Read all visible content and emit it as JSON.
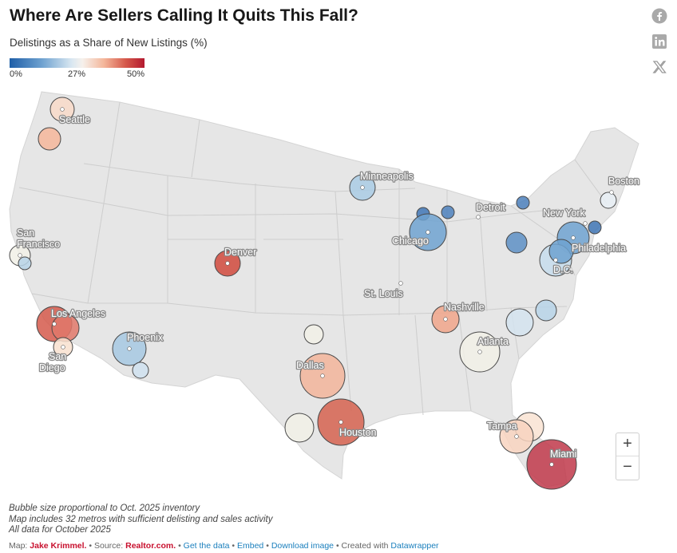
{
  "title": "Where Are Sellers Calling It Quits This Fall?",
  "subtitle": "Delistings as a Share of New Listings (%)",
  "legend": {
    "min_label": "0%",
    "mid_label": "27%",
    "max_label": "50%"
  },
  "social": [
    "facebook-icon",
    "linkedin-icon",
    "x-icon"
  ],
  "zoom": {
    "in_label": "+",
    "out_label": "−"
  },
  "labels": {
    "seattle": "Seattle",
    "san": "San",
    "francisco": "Francisco",
    "los_angeles": "Los Angeles",
    "san_diego_1": "San",
    "san_diego_2": "Diego",
    "phoenix": "Phoenix",
    "denver": "Denver",
    "dallas": "Dallas",
    "houston": "Houston",
    "minneapolis": "Minneapolis",
    "chicago": "Chicago",
    "detroit": "Detroit",
    "st_louis": "St. Louis",
    "nashville": "Nashville",
    "atlanta": "Atlanta",
    "tampa": "Tampa",
    "miami": "Miami",
    "new_york": "New York",
    "boston": "Boston",
    "philadelphia": "Philadelphia",
    "dc": "D.C."
  },
  "notes": [
    "Bubble size proportional to Oct. 2025 inventory",
    "Map includes 32 metros with sufficient delisting and sales activity",
    "All data for October 2025"
  ],
  "footer": {
    "map_prefix": "Map:",
    "author": "Jake Krimmel.",
    "source_prefix": "• Source:",
    "source_name": "Realtor.com.",
    "sep1": "•",
    "get_data": "Get the data",
    "embed": "Embed",
    "sep2": "•",
    "download": "Download image",
    "created_prefix": "• Created with",
    "datawrapper": "Datawrapper"
  },
  "colors": {
    "deep_blue": "#3f75b5",
    "mid_blue": "#6fa2d0",
    "light_blue": "#b7d3e8",
    "neutral": "#f1f0e6",
    "light_orange": "#f7d3c0",
    "orange": "#ef9f7f",
    "red": "#d5594b",
    "deep_red": "#c0384a"
  }
}
